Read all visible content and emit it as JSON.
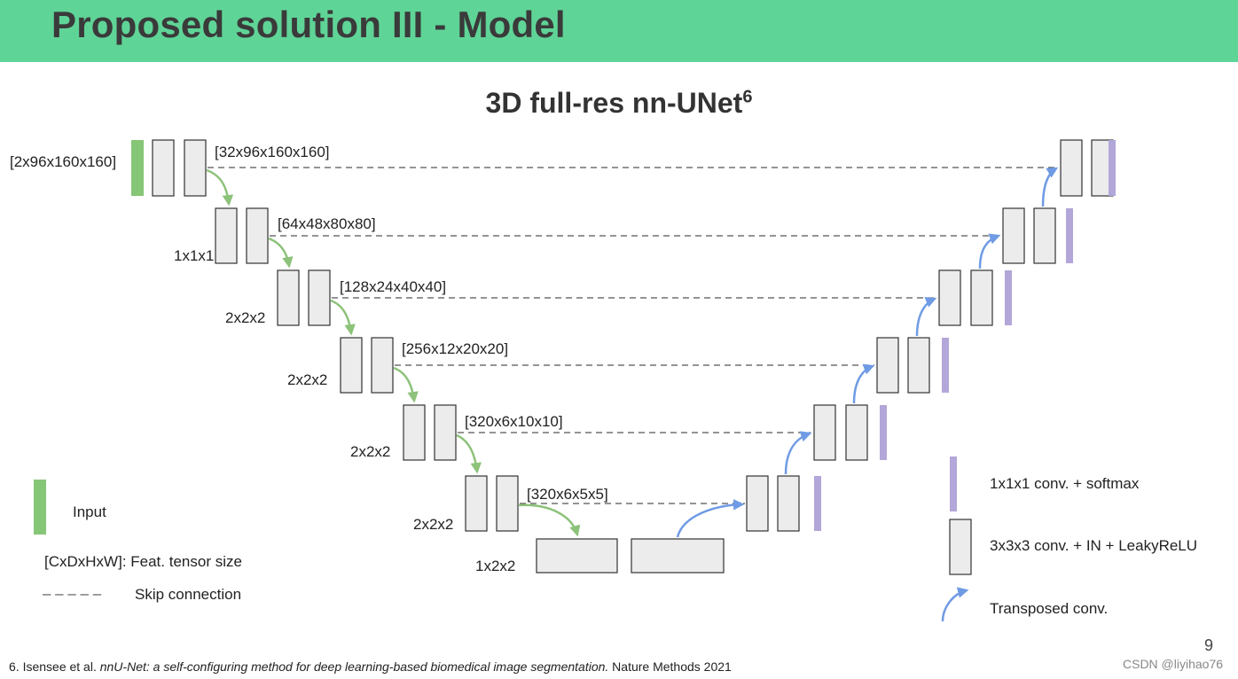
{
  "slide": {
    "heading": "Proposed solution III - Model",
    "title_main": "3D full-res nn-UNet",
    "title_sup": "6",
    "page_number": "9",
    "watermark": "CSDN @liyihao76"
  },
  "footnote": {
    "prefix": "6. Isensee et al. ",
    "italic": "nnU-Net: a self-configuring method for deep learning-based biomedical image segmentation.",
    "suffix": " Nature Methods 2021"
  },
  "diagram": {
    "input_size": "[2x96x160x160]",
    "stages": [
      {
        "stride": "",
        "tensor": "[32x96x160x160]"
      },
      {
        "stride": "1x1x1",
        "tensor": "[64x48x80x80]"
      },
      {
        "stride": "2x2x2",
        "tensor": "[128x24x40x40]"
      },
      {
        "stride": "2x2x2",
        "tensor": "[256x12x20x20]"
      },
      {
        "stride": "2x2x2",
        "tensor": "[320x6x10x10]"
      },
      {
        "stride": "2x2x2",
        "tensor": "[320x6x5x5]"
      }
    ],
    "bottleneck_stride": "1x2x2"
  },
  "legend": {
    "input": "Input",
    "tensor_size": "[CxDxHxW]: Feat. tensor size",
    "dash_sample": "– – – – –",
    "skip": "Skip connection",
    "softmax": "1x1x1 conv. + softmax",
    "conv_block": "3x3x3 conv. + IN + LeakyReLU",
    "transposed": "Transposed conv."
  },
  "colors": {
    "header_bg": "#5fd497",
    "input_green": "#86c677",
    "arrow_green": "#8dc27a",
    "arrow_blue": "#6f9be4",
    "softmax_purple": "#b3a6d9",
    "block_fill": "#ececec",
    "block_stroke": "#333333"
  }
}
